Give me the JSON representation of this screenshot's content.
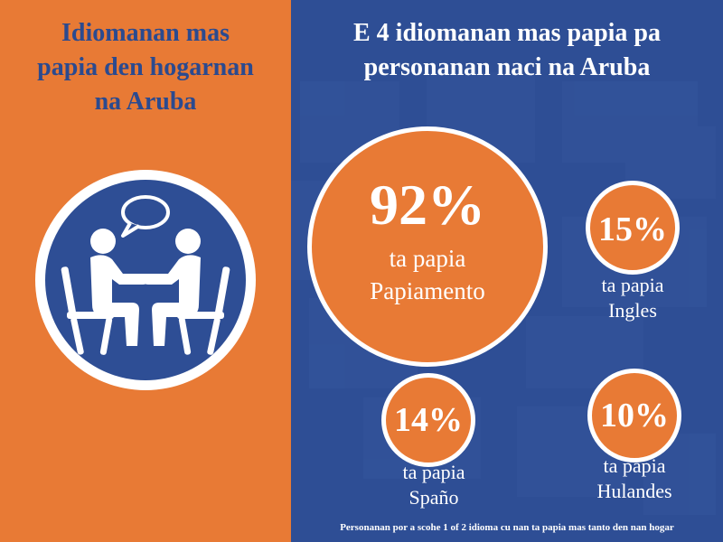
{
  "left": {
    "title_lines": [
      "Idiomanan mas",
      "papia den hogarnan",
      "na Aruba"
    ]
  },
  "right": {
    "title_lines": [
      "E 4 idiomanan mas papia pa",
      "personanan naci na Aruba"
    ]
  },
  "stats": [
    {
      "percent": "92%",
      "line1": "ta papia",
      "line2": "Papiamento"
    },
    {
      "percent": "15%",
      "line1": "ta papia",
      "line2": "Ingles"
    },
    {
      "percent": "14%",
      "line1": "ta papia",
      "line2": "Spaño"
    },
    {
      "percent": "10%",
      "line1": "ta papia",
      "line2": "Hulandes"
    }
  ],
  "footnote": "Personanan por a scohe 1 of 2 idioma cu nan ta papia mas tanto den nan hogar",
  "colors": {
    "orange": "#E87A35",
    "blue": "#2E4E95",
    "dark_blue": "#2B4A8F",
    "white": "#FFFFFF"
  },
  "icons": [
    "two-people-talking-icon",
    "speech-bubble-icon"
  ]
}
